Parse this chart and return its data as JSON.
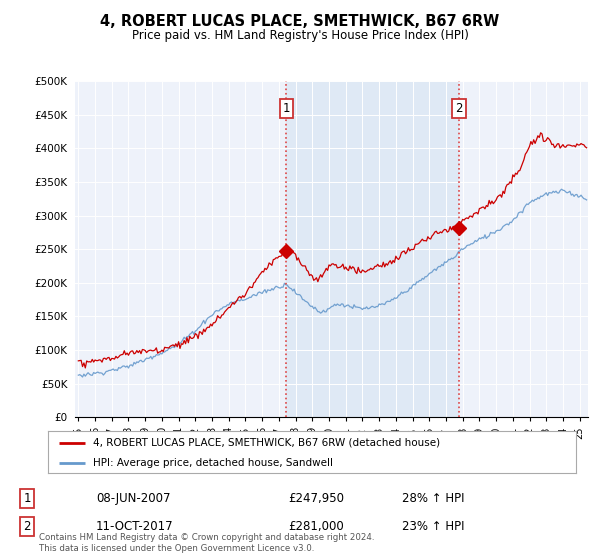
{
  "title": "4, ROBERT LUCAS PLACE, SMETHWICK, B67 6RW",
  "subtitle": "Price paid vs. HM Land Registry's House Price Index (HPI)",
  "ylabel_ticks": [
    "£0",
    "£50K",
    "£100K",
    "£150K",
    "£200K",
    "£250K",
    "£300K",
    "£350K",
    "£400K",
    "£450K",
    "£500K"
  ],
  "ytick_values": [
    0,
    50000,
    100000,
    150000,
    200000,
    250000,
    300000,
    350000,
    400000,
    450000,
    500000
  ],
  "ylim": [
    0,
    500000
  ],
  "xlim_start": 1994.8,
  "xlim_end": 2025.5,
  "property_color": "#cc0000",
  "hpi_color": "#6699cc",
  "marker1_year": 2007.44,
  "marker1_value": 247950,
  "marker2_year": 2017.78,
  "marker2_value": 281000,
  "marker_color": "#cc0000",
  "vline_color": "#dd4444",
  "shade_color": "#dde8f5",
  "legend_property": "4, ROBERT LUCAS PLACE, SMETHWICK, B67 6RW (detached house)",
  "legend_hpi": "HPI: Average price, detached house, Sandwell",
  "sale1_label": "1",
  "sale1_date": "08-JUN-2007",
  "sale1_price": "£247,950",
  "sale1_hpi": "28% ↑ HPI",
  "sale2_label": "2",
  "sale2_date": "11-OCT-2017",
  "sale2_price": "£281,000",
  "sale2_hpi": "23% ↑ HPI",
  "footer": "Contains HM Land Registry data © Crown copyright and database right 2024.\nThis data is licensed under the Open Government Licence v3.0.",
  "background_color": "#ffffff",
  "plot_bg_color": "#eef2fa"
}
